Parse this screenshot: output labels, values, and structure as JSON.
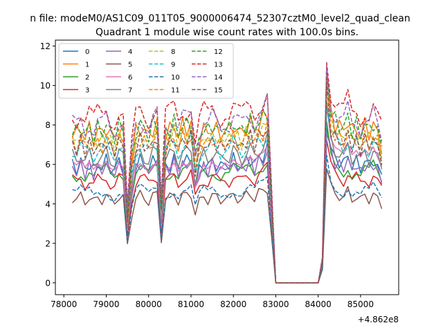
{
  "chart_data": {
    "type": "line",
    "suptitle": "n file: modeM0/AS1C09_011T05_9000006474_52307cztM0_level2_quad_clean",
    "title": "Quadrant 1 module wise count rates with 100.0s bins.",
    "xlabel": "",
    "ylabel": "",
    "offset_label": "+4.862e8",
    "xlim": [
      77800,
      85900
    ],
    "ylim": [
      -0.6,
      12.3
    ],
    "xticks": [
      78000,
      79000,
      80000,
      81000,
      82000,
      83000,
      84000,
      85000
    ],
    "xtick_labels": [
      "78000",
      "79000",
      "80000",
      "81000",
      "82000",
      "83000",
      "84000",
      "85000"
    ],
    "yticks": [
      0,
      2,
      4,
      6,
      8,
      10,
      12
    ],
    "ytick_labels": [
      "0",
      "2",
      "4",
      "6",
      "8",
      "10",
      "12"
    ],
    "legend_position": "upper-left",
    "x": [
      78200,
      78300,
      78400,
      78500,
      78600,
      78700,
      78800,
      78900,
      79000,
      79100,
      79200,
      79300,
      79400,
      79500,
      79600,
      79700,
      79800,
      79900,
      80000,
      80100,
      80200,
      80300,
      80400,
      80500,
      80600,
      80700,
      80800,
      80900,
      81000,
      81100,
      81200,
      81300,
      81400,
      81500,
      81600,
      81700,
      81800,
      81900,
      82000,
      82100,
      82200,
      82300,
      82400,
      82500,
      82600,
      82700,
      82800,
      82900,
      83000,
      83100,
      83200,
      83300,
      83400,
      83500,
      83600,
      83700,
      83800,
      83900,
      84000,
      84100,
      84150,
      84200,
      84300,
      84400,
      84500,
      84600,
      84700,
      84800,
      84900,
      85000,
      85100,
      85200,
      85300,
      85400,
      85500
    ],
    "series": [
      {
        "name": "0",
        "color": "#1f77b4",
        "dashed": false,
        "level": 6.0
      },
      {
        "name": "1",
        "color": "#ff7f0e",
        "dashed": false,
        "level": 7.7
      },
      {
        "name": "2",
        "color": "#2ca02c",
        "dashed": false,
        "level": 5.6
      },
      {
        "name": "3",
        "color": "#d62728",
        "dashed": false,
        "level": 5.2
      },
      {
        "name": "4",
        "color": "#9467bd",
        "dashed": false,
        "level": 5.8
      },
      {
        "name": "5",
        "color": "#8c564b",
        "dashed": false,
        "level": 4.3
      },
      {
        "name": "6",
        "color": "#e377c2",
        "dashed": false,
        "level": 6.2
      },
      {
        "name": "7",
        "color": "#7f7f7f",
        "dashed": false,
        "level": 6.4
      },
      {
        "name": "8",
        "color": "#bcbd22",
        "dashed": true,
        "level": 7.3
      },
      {
        "name": "9",
        "color": "#17becf",
        "dashed": true,
        "level": 6.8
      },
      {
        "name": "10",
        "color": "#1f77b4",
        "dashed": true,
        "level": 4.6
      },
      {
        "name": "11",
        "color": "#ff7f0e",
        "dashed": true,
        "level": 7.1
      },
      {
        "name": "12",
        "color": "#2ca02c",
        "dashed": true,
        "level": 7.8
      },
      {
        "name": "13",
        "color": "#d62728",
        "dashed": true,
        "level": 8.6
      },
      {
        "name": "14",
        "color": "#9467bd",
        "dashed": true,
        "level": 8.1
      },
      {
        "name": "15",
        "color": "#8c564b",
        "dashed": true,
        "level": 7.0
      }
    ],
    "shape": [
      1.0,
      0.97,
      1.02,
      0.96,
      1.01,
      0.95,
      1.0,
      0.98,
      1.03,
      0.97,
      0.96,
      1.02,
      0.99,
      0.45,
      0.8,
      0.99,
      1.03,
      1.0,
      0.96,
      1.02,
      1.04,
      0.5,
      0.98,
      1.0,
      1.04,
      0.97,
      1.03,
      1.02,
      1.05,
      0.82,
      0.95,
      1.01,
      0.98,
      1.03,
      1.0,
      0.97,
      1.02,
      0.99,
      1.04,
      1.0,
      0.98,
      1.03,
      1.05,
      1.0,
      1.06,
      1.07,
      1.12,
      0.55,
      0.0,
      0.0,
      0.0,
      0.0,
      0.0,
      0.0,
      0.0,
      0.0,
      0.0,
      0.0,
      0.0,
      0.15,
      0.75,
      1.38,
      1.12,
      1.05,
      1.03,
      1.0,
      1.08,
      0.99,
      1.02,
      0.97,
      1.03,
      0.99,
      1.05,
      0.97,
      0.9
    ]
  }
}
